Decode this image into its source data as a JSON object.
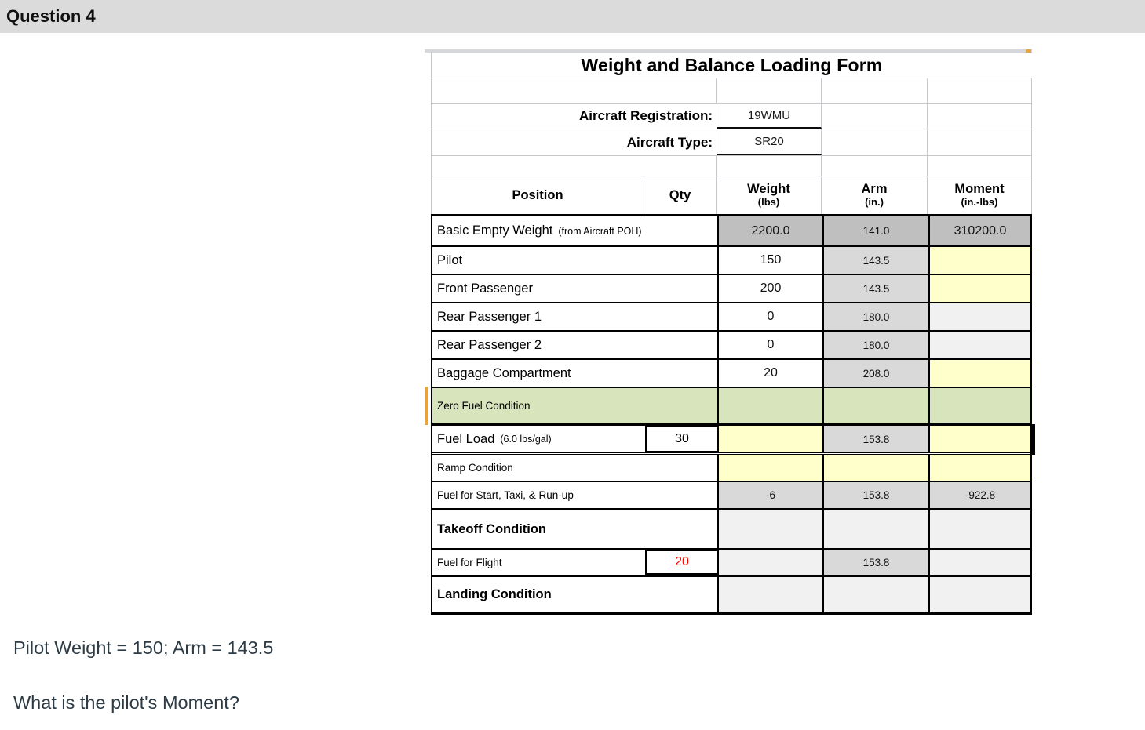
{
  "header": {
    "title": "Question 4"
  },
  "form": {
    "title": "Weight and Balance Loading Form",
    "registration_label": "Aircraft Registration:",
    "registration_value": "19WMU",
    "type_label": "Aircraft Type:",
    "type_value": "SR20",
    "columns": {
      "position": "Position",
      "qty": "Qty",
      "weight": "Weight",
      "weight_sub": "(lbs)",
      "arm": "Arm",
      "arm_sub": "(in.)",
      "moment": "Moment",
      "moment_sub": "(in.-lbs)"
    },
    "rows": [
      {
        "name": "basic-empty-weight",
        "label": "Basic Empty Weight",
        "note": "(from Aircraft POH)",
        "label_style": "normal",
        "label_bg": "white",
        "qty": null,
        "qty_color": null,
        "weight": "2200.0",
        "arm": "141.0",
        "moment": "310200.0",
        "weight_bg": "dark",
        "arm_bg": "dark",
        "moment_bg": "dark"
      },
      {
        "name": "pilot",
        "label": "Pilot",
        "note": null,
        "label_style": "normal",
        "label_bg": "white",
        "qty": null,
        "qty_color": null,
        "weight": "150",
        "arm": "143.5",
        "moment": "",
        "weight_bg": "white",
        "arm_bg": "gray",
        "moment_bg": "yellow"
      },
      {
        "name": "front-passenger",
        "label": "Front Passenger",
        "note": null,
        "label_style": "normal",
        "label_bg": "white",
        "qty": null,
        "qty_color": null,
        "weight": "200",
        "arm": "143.5",
        "moment": "",
        "weight_bg": "white",
        "arm_bg": "gray",
        "moment_bg": "yellow"
      },
      {
        "name": "rear-passenger-1",
        "label": "Rear Passenger 1",
        "note": null,
        "label_style": "normal",
        "label_bg": "white",
        "qty": null,
        "qty_color": null,
        "weight": "0",
        "arm": "180.0",
        "moment": "",
        "weight_bg": "white",
        "arm_bg": "gray",
        "moment_bg": "light"
      },
      {
        "name": "rear-passenger-2",
        "label": "Rear Passenger 2",
        "note": null,
        "label_style": "normal",
        "label_bg": "white",
        "qty": null,
        "qty_color": null,
        "weight": "0",
        "arm": "180.0",
        "moment": "",
        "weight_bg": "white",
        "arm_bg": "gray",
        "moment_bg": "light"
      },
      {
        "name": "baggage-compartment",
        "label": "Baggage Compartment",
        "note": null,
        "label_style": "normal",
        "label_bg": "white",
        "qty": null,
        "qty_color": null,
        "weight": "20",
        "arm": "208.0",
        "moment": "",
        "weight_bg": "white",
        "arm_bg": "gray",
        "moment_bg": "yellow"
      },
      {
        "name": "zero-fuel-condition",
        "label": "Zero Fuel Condition",
        "note": null,
        "label_style": "small",
        "label_bg": "green",
        "qty": null,
        "qty_color": null,
        "weight": "",
        "arm": "",
        "moment": "",
        "weight_bg": "green",
        "arm_bg": "green",
        "moment_bg": "green"
      },
      {
        "name": "fuel-load",
        "label": "Fuel Load",
        "note": "(6.0 lbs/gal)",
        "label_style": "normal",
        "label_bg": "white",
        "qty": "30",
        "qty_color": null,
        "weight": "",
        "arm": "153.8",
        "moment": "",
        "weight_bg": "yellow",
        "arm_bg": "gray",
        "moment_bg": "yellow"
      },
      {
        "name": "ramp-condition",
        "label": "Ramp Condition",
        "note": null,
        "label_style": "small",
        "label_bg": "white",
        "qty": null,
        "qty_color": null,
        "weight": "",
        "arm": "",
        "moment": "",
        "weight_bg": "yellow",
        "arm_bg": "yellow",
        "moment_bg": "yellow"
      },
      {
        "name": "fuel-start",
        "label": "Fuel for Start, Taxi, & Run-up",
        "note": null,
        "label_style": "small",
        "label_bg": "white",
        "qty": null,
        "qty_color": null,
        "weight": "-6",
        "arm": "153.8",
        "moment": "-922.8",
        "weight_bg": "gray",
        "arm_bg": "gray",
        "moment_bg": "gray"
      },
      {
        "name": "takeoff-condition",
        "label": "Takeoff Condition",
        "note": null,
        "label_style": "bold",
        "label_bg": "white",
        "qty": null,
        "qty_color": null,
        "weight": "",
        "arm": "",
        "moment": "",
        "weight_bg": "light",
        "arm_bg": "light",
        "moment_bg": "light"
      },
      {
        "name": "fuel-for-flight",
        "label": "Fuel for Flight",
        "note": null,
        "label_style": "small",
        "label_bg": "white",
        "qty": "20",
        "qty_color": "red",
        "weight": "",
        "arm": "153.8",
        "moment": "",
        "weight_bg": "light",
        "arm_bg": "gray",
        "moment_bg": "light"
      },
      {
        "name": "landing-condition",
        "label": "Landing Condition",
        "note": null,
        "label_style": "bold",
        "label_bg": "white",
        "qty": null,
        "qty_color": null,
        "weight": "",
        "arm": "",
        "moment": "",
        "weight_bg": "light",
        "arm_bg": "light",
        "moment_bg": "light"
      }
    ]
  },
  "question": {
    "line1": "Pilot Weight = 150; Arm = 143.5",
    "line2": "What is the pilot's Moment?"
  },
  "colors": {
    "header_bar": "#dbdbdb",
    "computed_dark_gray": "#bfbfbf",
    "arm_gray": "#d9d9d9",
    "input_yellow": "#ffffcc",
    "inactive_light": "#f1f1f1",
    "section_green": "#d7e4bc",
    "marker_orange": "#e7a33e",
    "qty_red": "#ff0000",
    "question_text": "#2d3b45"
  }
}
